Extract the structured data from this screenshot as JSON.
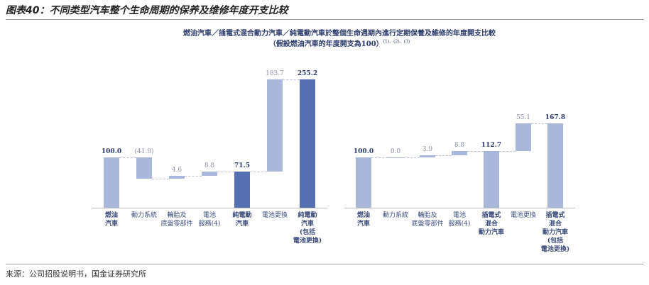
{
  "header": {
    "title": "图表40：不同类型汽车整个生命周期的保养及维修年度开支比较"
  },
  "title": "燃油汽車／插電式混合動力汽車／純電動汽車於整個生命週期內進行定期保養及維修的年度開支比較",
  "subtitle": "（假設燃油汽車的年度開支為100）",
  "subtitle_note": "(1)、(2)、(3)",
  "chart_data": [
    {
      "type": "waterfall",
      "categories": [
        "燃油\n汽車",
        "動力系統",
        "輪胎及\n底盤零部件",
        "電池\n服務(4)",
        "純電動\n汽車",
        "電池更換",
        "純電動\n汽車\n(包括\n電池更換)"
      ],
      "values": [
        100,
        -41.9,
        4.6,
        8.8,
        71.5,
        183.7,
        255.2
      ],
      "value_labels": [
        "100.0",
        "(41.9)",
        "4.6",
        "8.8",
        "71.5",
        "183.7",
        "255.2"
      ],
      "bar_types": [
        "total",
        "delta",
        "delta",
        "delta",
        "total",
        "delta",
        "total"
      ],
      "colors": [
        "#a9b8da",
        "#a9b8da",
        "#a9b8da",
        "#a9b8da",
        "#5670b2",
        "#a9b8da",
        "#5670b2"
      ],
      "ylim": [
        0,
        270
      ]
    },
    {
      "type": "waterfall",
      "categories": [
        "燃油\n汽車",
        "動力系統",
        "輪胎及\n底盤零部件",
        "電池\n服務(4)",
        "插電式\n混合\n動力汽車",
        "電池更換",
        "插電式\n混合\n動力汽車\n(包括\n電池更換)"
      ],
      "values": [
        100,
        0,
        3.9,
        8.8,
        112.7,
        55.1,
        167.8
      ],
      "value_labels": [
        "100.0",
        "0.0",
        "3.9",
        "8.8",
        "112.7",
        "55.1",
        "167.8"
      ],
      "bar_types": [
        "total",
        "delta",
        "delta",
        "delta",
        "total",
        "delta",
        "total"
      ],
      "colors": [
        "#a9b8da",
        "#a9b8da",
        "#a9b8da",
        "#a9b8da",
        "#a9b8da",
        "#a9b8da",
        "#a9b8da"
      ],
      "ylim": [
        0,
        270
      ]
    }
  ],
  "source": "来源：公司招股说明书，国金证券研究所"
}
